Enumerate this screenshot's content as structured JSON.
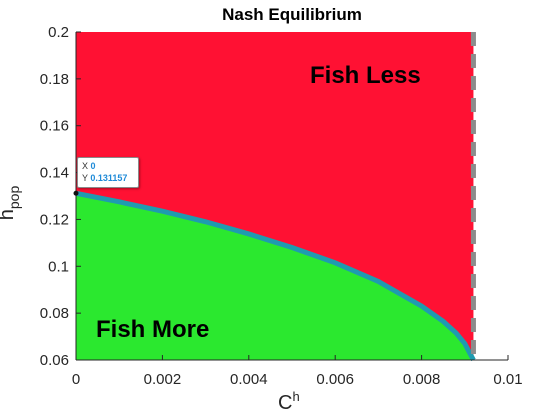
{
  "chart_data": {
    "type": "area",
    "title": "Nash Equilibrium",
    "xlabel": {
      "base": "C",
      "sup": "h"
    },
    "ylabel": {
      "base": "h",
      "sub": "pop"
    },
    "xlim": [
      0,
      0.01
    ],
    "ylim": [
      0.06,
      0.2
    ],
    "x_ticks": [
      "0",
      "0.002",
      "0.004",
      "0.006",
      "0.008",
      "0.01"
    ],
    "y_ticks": [
      "0.06",
      "0.08",
      "0.1",
      "0.12",
      "0.14",
      "0.16",
      "0.18",
      "0.2"
    ],
    "boundary": {
      "x": [
        0,
        0.001,
        0.002,
        0.003,
        0.004,
        0.005,
        0.006,
        0.007,
        0.008,
        0.0085,
        0.0088,
        0.009,
        0.0092
      ],
      "y": [
        0.131157,
        0.1275,
        0.1235,
        0.119,
        0.1138,
        0.108,
        0.1015,
        0.0935,
        0.083,
        0.0765,
        0.0715,
        0.067,
        0.06
      ]
    },
    "vertical_line_x": 0.0092,
    "regions": [
      {
        "label": "Fish Less",
        "color": "#ff1133"
      },
      {
        "label": "Fish More",
        "color": "#2be82f"
      }
    ],
    "boundary_color": "#1f9bb0",
    "datatip": {
      "x_label": "X",
      "x_value": "0",
      "y_label": "Y",
      "y_value": "0.131157"
    }
  }
}
